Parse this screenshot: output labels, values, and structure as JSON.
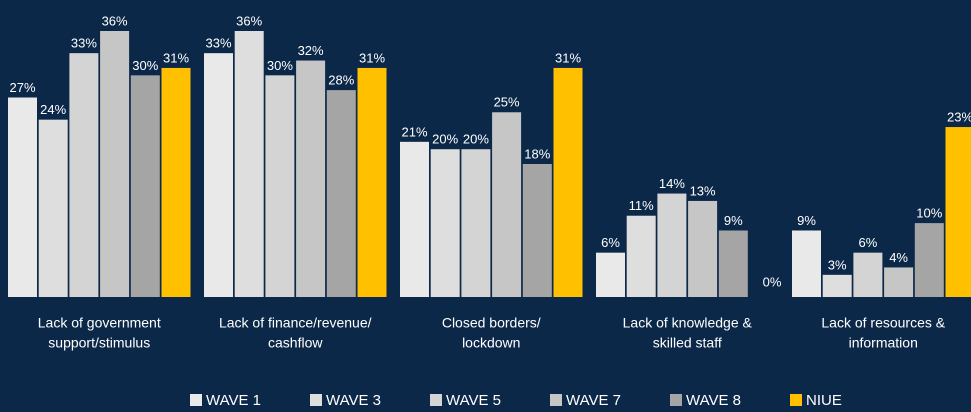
{
  "chart_data": {
    "type": "bar",
    "categories": [
      [
        "Lack of government",
        "support/stimulus"
      ],
      [
        "Lack of finance/revenue/",
        "cashflow"
      ],
      [
        "Closed borders/",
        "lockdown"
      ],
      [
        "Lack of knowledge &",
        "skilled staff"
      ],
      [
        "Lack of resources &",
        "information"
      ]
    ],
    "series": [
      {
        "name": "WAVE 1",
        "color": "#e9e9e9",
        "values": [
          27,
          33,
          21,
          6,
          9
        ],
        "value_labels": [
          "27%",
          "33%",
          "21%",
          "6%",
          "9%"
        ]
      },
      {
        "name": "WAVE 3",
        "color": "#dedede",
        "values": [
          24,
          36,
          20,
          11,
          3
        ],
        "value_labels": [
          "24%",
          "36%",
          "20%",
          "11%",
          "3%"
        ]
      },
      {
        "name": "WAVE 5",
        "color": "#d4d4d4",
        "values": [
          33,
          30,
          20,
          14,
          6
        ],
        "value_labels": [
          "33%",
          "30%",
          "20%",
          "14%",
          "6%"
        ]
      },
      {
        "name": "WAVE 7",
        "color": "#c6c6c6",
        "values": [
          36,
          32,
          25,
          13,
          4
        ],
        "value_labels": [
          "36%",
          "32%",
          "25%",
          "13%",
          "4%"
        ]
      },
      {
        "name": "WAVE 8",
        "color": "#a5a5a5",
        "values": [
          30,
          28,
          18,
          9,
          10
        ],
        "value_labels": [
          "30%",
          "28%",
          "18%",
          "9%",
          "10%"
        ]
      },
      {
        "name": "NIUE",
        "color": "#ffc000",
        "values": [
          31,
          31,
          31,
          0,
          23
        ],
        "value_labels": [
          "31%",
          "31%",
          "31%",
          "0%",
          "23%"
        ]
      }
    ],
    "legend": "bottom"
  }
}
